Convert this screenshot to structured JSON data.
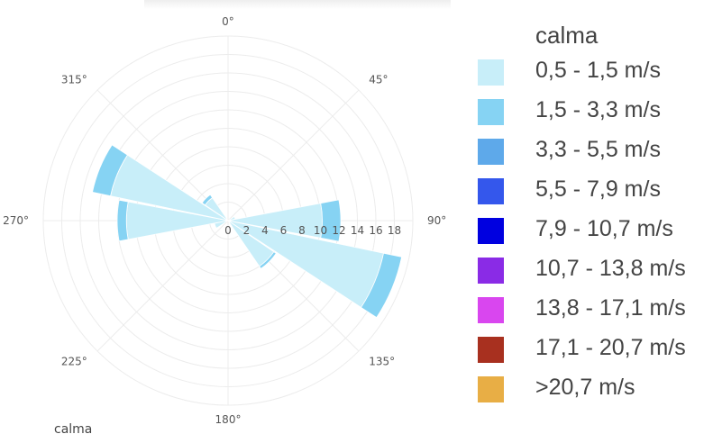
{
  "chart_data": {
    "type": "barpolar",
    "legend_title": "calma",
    "bottom_label": "calma",
    "angular_ticks": [
      "0°",
      "45°",
      "90°",
      "135°",
      "180°",
      "225°",
      "270°",
      "315°"
    ],
    "radial_ticks": [
      "0",
      "2",
      "4",
      "6",
      "8",
      "10",
      "12",
      "14",
      "16",
      "18"
    ],
    "radial_range": [
      0,
      20
    ],
    "rotation": "clockwise, 0° at top",
    "directions_deg": [
      0,
      22.5,
      45,
      67.5,
      90,
      112.5,
      135,
      157.5,
      180,
      202.5,
      225,
      247.5,
      270,
      292.5,
      315,
      337.5
    ],
    "series": [
      {
        "name": "0,5 - 1,5 m/s",
        "color": "#c8eef9",
        "values": [
          0,
          0,
          0,
          0.8,
          10.2,
          17.2,
          6.0,
          0,
          0,
          0,
          0,
          1.5,
          11.0,
          13.0,
          3.0,
          0
        ]
      },
      {
        "name": "1,5 - 3,3 m/s",
        "color": "#86d3f3",
        "values": [
          0,
          0,
          0,
          0,
          2.0,
          2.0,
          0.3,
          0,
          0,
          0,
          0,
          0,
          1.0,
          2.0,
          0.4,
          0
        ]
      },
      {
        "name": "3,3 - 5,5 m/s",
        "color": "#5ea9ea",
        "values": []
      },
      {
        "name": "5,5 - 7,9 m/s",
        "color": "#3457ec",
        "values": []
      },
      {
        "name": "7,9 - 10,7 m/s",
        "color": "#0000e0",
        "values": []
      },
      {
        "name": "10,7 - 13,8 m/s",
        "color": "#8a2be6",
        "values": []
      },
      {
        "name": "13,8 - 17,1 m/s",
        "color": "#d946ef",
        "values": []
      },
      {
        "name": "17,1 - 20,7 m/s",
        "color": "#a8301f",
        "values": []
      },
      {
        "name": ">20,7 m/s",
        "color": "#e8ae45",
        "values": []
      }
    ],
    "grid": true,
    "legend_position": "right"
  }
}
